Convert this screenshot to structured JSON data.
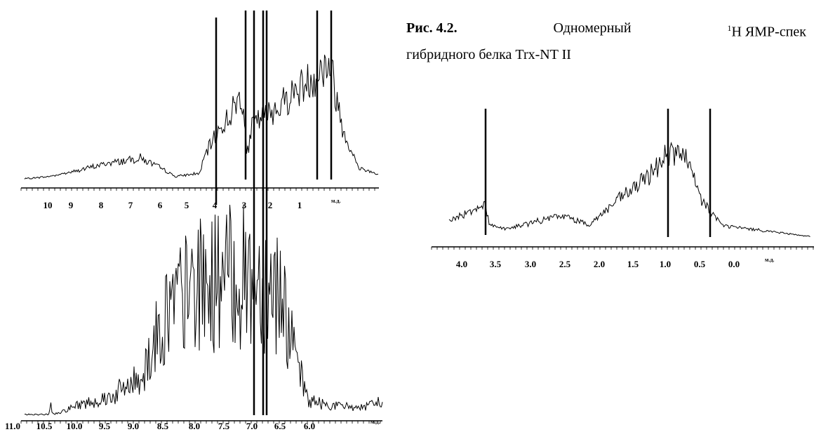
{
  "caption": {
    "label": "Рис. 4.2.",
    "word": "Одномерный",
    "superscript": "1",
    "rest": "H ЯМР-спек",
    "line2": "гибридного белка Trx-NT II"
  },
  "spectra": [
    {
      "ticks": [
        "10",
        "9",
        "8",
        "7",
        "6",
        "5",
        "4",
        "3",
        "2",
        "1"
      ],
      "unit": "м.д."
    },
    {
      "ticks": [
        "11.0",
        "10.5",
        "10.0",
        "9.5",
        "9.0",
        "8.5",
        "8.0",
        "7.5",
        "7.0",
        "6.5",
        "6.0"
      ],
      "unit": "м.д."
    },
    {
      "ticks": [
        "4.0",
        "3.5",
        "3.0",
        "2.5",
        "2.0",
        "1.5",
        "1.0",
        "0.5",
        "0.0"
      ],
      "unit": "м.д."
    }
  ]
}
